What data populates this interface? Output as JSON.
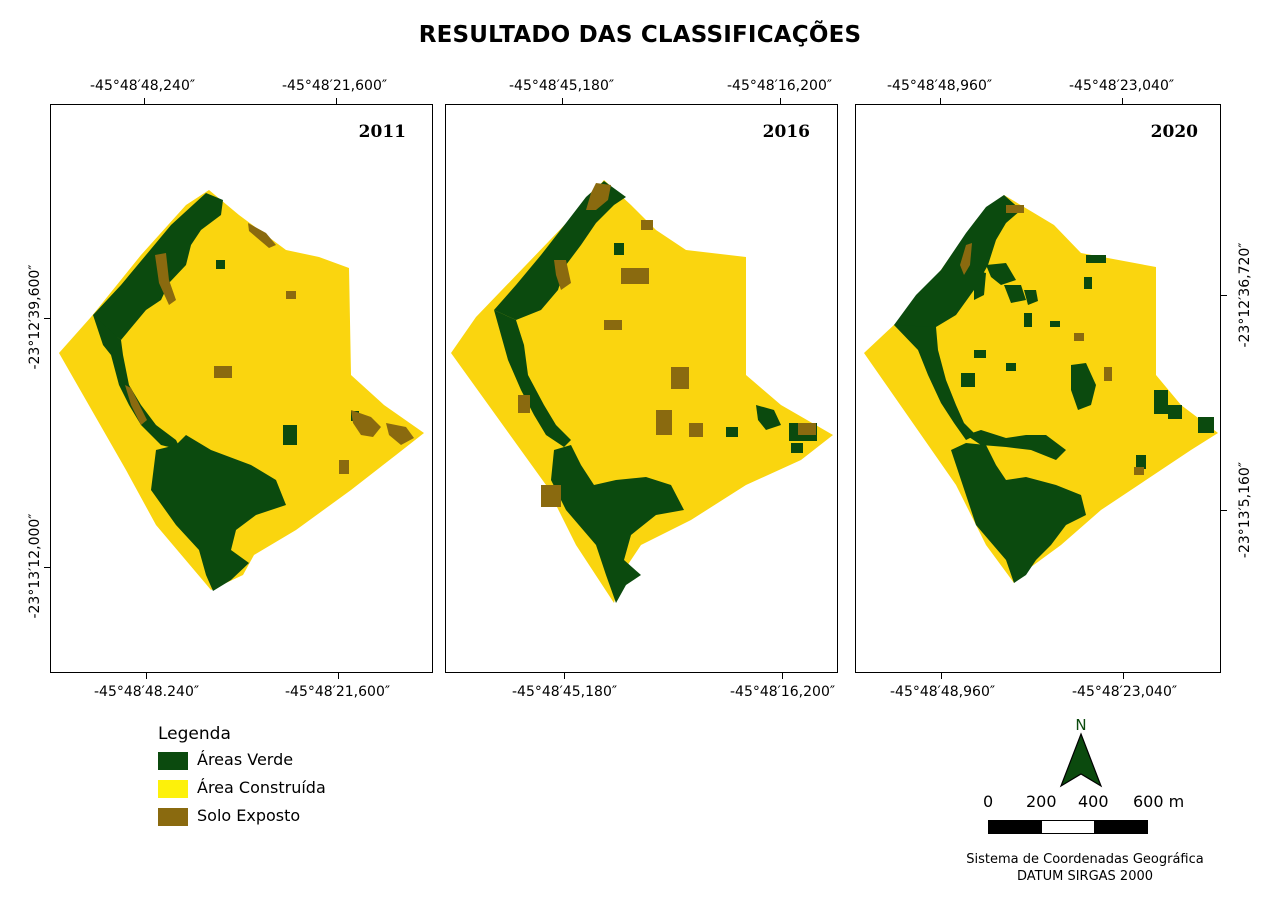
{
  "title": "RESULTADO DAS CLASSIFICAÇÕES",
  "colors": {
    "verde": "#0b4a0e",
    "construida": "#fad50f",
    "solo": "#8a6a0f",
    "frame": "#000000"
  },
  "panels": [
    {
      "year": "2011",
      "top_coords": [
        "-45°48′48,240″",
        "-45°48′21,600″"
      ],
      "bottom_coords": [
        "-45°48′48.240″",
        "-45°48′21,600″"
      ],
      "left_coords": [
        "-23°12′39,600″",
        "-23°13′12,000″"
      ]
    },
    {
      "year": "2016",
      "top_coords": [
        "-45°48′45,180″",
        "-45°48′16,200″"
      ],
      "bottom_coords": [
        "-45°48′45,180″",
        "-45°48′16,200″"
      ]
    },
    {
      "year": "2020",
      "top_coords": [
        "-45°48′48,960″",
        "-45°48′23,040″"
      ],
      "bottom_coords": [
        "-45°48′48,960″",
        "-45°48′23,040″"
      ],
      "right_coords": [
        "-23°12′36,720″",
        "-23°13′5,160″"
      ]
    }
  ],
  "legend": {
    "title": "Legenda",
    "items": [
      {
        "label": "Áreas Verde",
        "color": "#0b4a0e"
      },
      {
        "label": "Área Construída",
        "color": "#fdf10a"
      },
      {
        "label": "Solo Exposto",
        "color": "#8a6a0f"
      }
    ]
  },
  "north_arrow": {
    "label": "N"
  },
  "scale_bar": {
    "labels": [
      "0",
      "200",
      "400",
      "600 m"
    ]
  },
  "crs": {
    "line1": "Sistema de Coordenadas Geográfica",
    "line2": "DATUM SIRGAS 2000"
  }
}
